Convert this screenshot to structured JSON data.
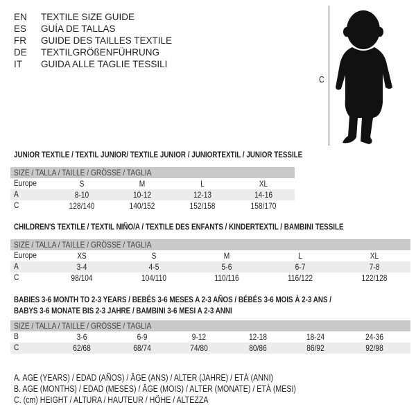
{
  "languages": [
    {
      "code": "EN",
      "title": "TEXTILE SIZE GUIDE"
    },
    {
      "code": "ES",
      "title": "GUÍA DE TALLAS"
    },
    {
      "code": "FR",
      "title": "GUIDE DES TAILLES TEXTILE"
    },
    {
      "code": "DE",
      "title": "TEXTILGRÖßENFÜHRUNG"
    },
    {
      "code": "IT",
      "title": "GUIDA ALLE TAGLIE TESSILI"
    }
  ],
  "figure": {
    "label": "C"
  },
  "junior": {
    "title": "JUNIOR TEXTILE / TEXTIL JUNIOR/ TEXTILE JUNIOR / JUNIORTEXTIL / JUNIOR TESSILE",
    "header": "SIZE / TALLA / TAILLE / GRÖSSE / TAGLIA",
    "rows": [
      {
        "label": "Europe",
        "values": [
          "S",
          "M",
          "L",
          "XL"
        ]
      },
      {
        "label": "A",
        "values": [
          "8-10",
          "10-12",
          "12-13",
          "14-16"
        ]
      },
      {
        "label": "C",
        "values": [
          "128/140",
          "140/152",
          "152/158",
          "158/170"
        ]
      }
    ]
  },
  "children": {
    "title": "CHILDREN'S TEXTILE / TEXTIL NIÑO/A / TEXTILE DES ENFANTS / KINDERTEXTIL / BAMBINI TESSILE",
    "header": "SIZE / TALLA / TAILLE / GRÖSSE / TAGLIA",
    "rows": [
      {
        "label": "Europe",
        "values": [
          "XS",
          "S",
          "M",
          "L",
          "XL"
        ]
      },
      {
        "label": "A",
        "values": [
          "3-4",
          "4-5",
          "5-6",
          "6-7",
          "7-8"
        ]
      },
      {
        "label": "C",
        "values": [
          "98/104",
          "104/110",
          "110/116",
          "116/122",
          "122/128"
        ]
      }
    ]
  },
  "babies": {
    "title_line1": "BABIES 3-6 MONTH TO 2-3 YEARS / BEBÉS 3-6 MESES A 2-3 AÑOS / BÉBÉS 3-6 MOIS À 2-3 ANS /",
    "title_line2": "BABYS 3-6 MONATE BIS 2-3 JAHRE / BAMBINI 3-6 MESI A 2-3 ANNI",
    "header": "SIZE / TALLA / TAILLE / GRÖSSE / TAGLIA",
    "rows": [
      {
        "label": "B",
        "values": [
          "3-6",
          "6-9",
          "9-12",
          "12-18",
          "18-24",
          "24-36"
        ]
      },
      {
        "label": "C",
        "values": [
          "62/68",
          "68/74",
          "74/80",
          "80/86",
          "86/92",
          "92/98"
        ]
      }
    ]
  },
  "legend": [
    "A. AGE (YEARS) / EDAD (AÑOS) / ÂGE (ANS) / ALTER (JAHRE) / ETÀ (ANNI)",
    "B. AGE (MONTHS) / EDAD (MESES) / ÂGE (MOIS) / ALTER (MONATE) / ETÀ (MESI)",
    "C. (cm) HEIGHT / ALTURA / HAUTEUR / HÖHE / ALTEZZA"
  ]
}
